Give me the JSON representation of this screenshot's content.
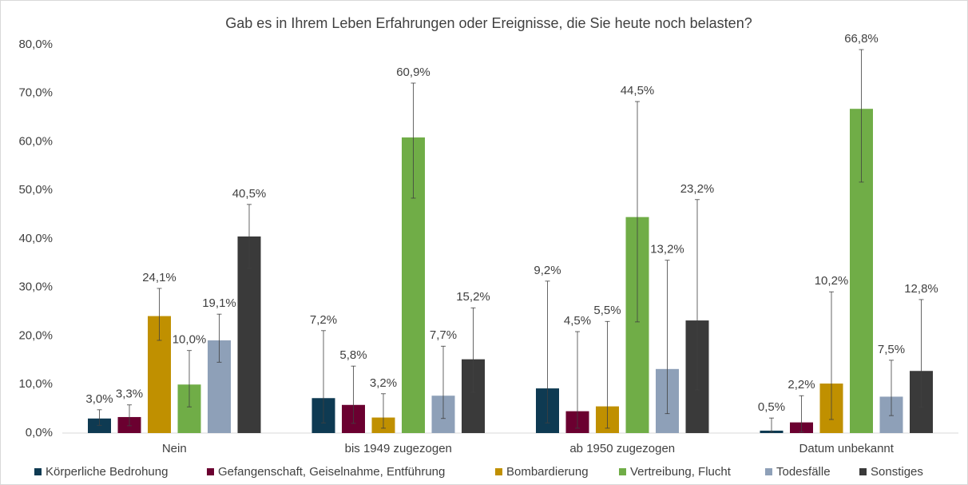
{
  "chart_data": {
    "type": "bar",
    "title": "Gab es in Ihrem Leben Erfahrungen oder Ereignisse, die Sie heute noch belasten?",
    "categories": [
      "Nein",
      "bis 1949 zugezogen",
      "ab 1950 zugezogen",
      "Datum unbekannt"
    ],
    "series": [
      {
        "name": "Körperliche Bedrohung",
        "color": "#0e3a52",
        "values": [
          3.0,
          7.2,
          9.2,
          0.5
        ],
        "value_labels": [
          "3,0%",
          "7,2%",
          "9,2%",
          "0,5%"
        ],
        "error_upper": [
          4.8,
          21.1,
          31.3,
          3.1
        ],
        "error_lower": [
          1.6,
          2.1,
          2.1,
          0.2
        ]
      },
      {
        "name": "Gefangenschaft, Geiselnahme, Entführung",
        "color": "#6b0030",
        "values": [
          3.3,
          5.8,
          4.5,
          2.2
        ],
        "value_labels": [
          "3,3%",
          "5,8%",
          "4,5%",
          "2,2%"
        ],
        "error_upper": [
          5.8,
          13.8,
          20.9,
          7.7
        ],
        "error_lower": [
          1.5,
          2.0,
          1.0,
          0.2
        ]
      },
      {
        "name": "Bombardierung",
        "color": "#c09000",
        "values": [
          24.1,
          3.2,
          5.5,
          10.2
        ],
        "value_labels": [
          "24,1%",
          "3,2%",
          "5,5%",
          "10,2%"
        ],
        "error_upper": [
          29.8,
          8.1,
          23.0,
          29.1
        ],
        "error_lower": [
          19.1,
          1.0,
          1.0,
          2.8
        ]
      },
      {
        "name": "Vertreibung, Flucht",
        "color": "#70ad47",
        "values": [
          10.0,
          60.9,
          44.5,
          66.8
        ],
        "value_labels": [
          "10,0%",
          "60,9%",
          "44,5%",
          "66,8%"
        ],
        "error_upper": [
          17.0,
          72.1,
          68.3,
          79.0
        ],
        "error_lower": [
          5.4,
          48.4,
          22.9,
          51.7
        ]
      },
      {
        "name": "Todesfälle",
        "color": "#8ea0b8",
        "values": [
          19.1,
          7.7,
          13.2,
          7.5
        ],
        "value_labels": [
          "19,1%",
          "7,7%",
          "13,2%",
          "7,5%"
        ],
        "error_upper": [
          24.5,
          17.9,
          35.6,
          15.0
        ],
        "error_lower": [
          14.6,
          3.0,
          4.0,
          3.6
        ]
      },
      {
        "name": "Sonstiges",
        "color": "#3a3a3a",
        "values": [
          40.5,
          15.2,
          23.2,
          12.8
        ],
        "value_labels": [
          "40,5%",
          "15,2%",
          "23,2%",
          "12,8%"
        ],
        "error_upper": [
          47.1,
          25.8,
          48.1,
          27.5
        ],
        "error_lower": [
          33.9,
          8.4,
          8.9,
          5.3
        ]
      }
    ],
    "ylim": [
      0,
      80
    ],
    "yticks": [
      {
        "value": 0,
        "label": "0,0%"
      },
      {
        "value": 10,
        "label": "10,0%"
      },
      {
        "value": 20,
        "label": "20,0%"
      },
      {
        "value": 30,
        "label": "30,0%"
      },
      {
        "value": 40,
        "label": "40,0%"
      },
      {
        "value": 50,
        "label": "50,0%"
      },
      {
        "value": 60,
        "label": "60,0%"
      },
      {
        "value": 70,
        "label": "70,0%"
      },
      {
        "value": 80,
        "label": "80,0%"
      }
    ],
    "legend": "bottom"
  }
}
